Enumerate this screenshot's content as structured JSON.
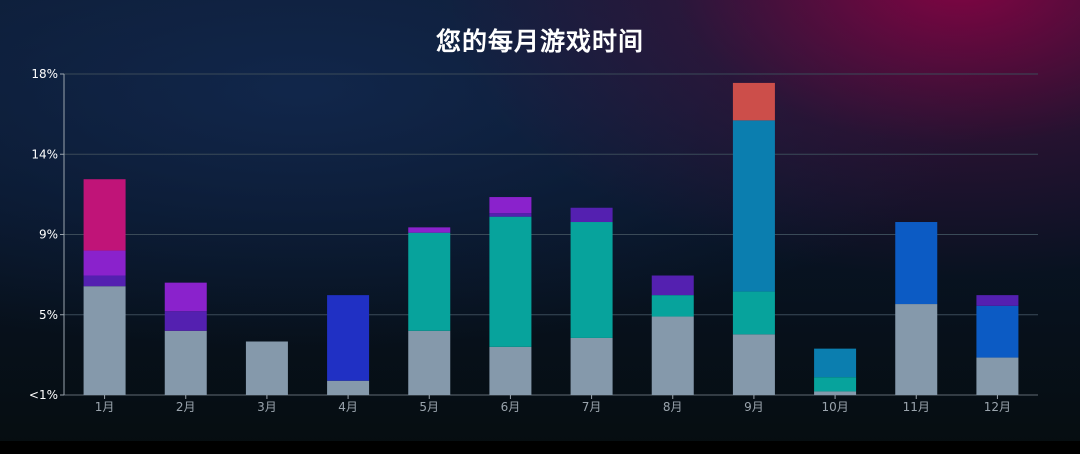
{
  "title": "您的每月游戏时间",
  "chart_data": {
    "type": "bar",
    "stacked": true,
    "title": "您的每月游戏时间",
    "xlabel": "",
    "ylabel": "",
    "categories": [
      "1月",
      "2月",
      "3月",
      "4月",
      "5月",
      "6月",
      "7月",
      "8月",
      "9月",
      "10月",
      "11月",
      "12月"
    ],
    "y_ticks": [
      {
        "label": "<1%",
        "value": 0
      },
      {
        "label": "5%",
        "value": 4.5
      },
      {
        "label": "9%",
        "value": 9
      },
      {
        "label": "14%",
        "value": 13.5
      },
      {
        "label": "18%",
        "value": 18
      }
    ],
    "ylim": [
      0,
      18
    ],
    "grid": true,
    "legend": "none",
    "series": [
      {
        "color": "#8599ab",
        "values": [
          6.1,
          3.6,
          3.0,
          0.8,
          3.6,
          2.7,
          3.2,
          4.4,
          3.4,
          0.2,
          5.1,
          2.1
        ]
      },
      {
        "color": "#07a39c",
        "values": [
          0,
          0,
          0,
          0,
          5.5,
          7.3,
          6.5,
          1.2,
          2.4,
          0.8,
          0,
          0
        ]
      },
      {
        "color": "#0b7eaf",
        "values": [
          0,
          0,
          0,
          0,
          0,
          0,
          0,
          0,
          9.6,
          1.6,
          0,
          0
        ]
      },
      {
        "color": "#0c5bc4",
        "values": [
          0,
          0,
          0,
          0,
          0,
          0,
          0,
          0,
          0,
          0,
          4.6,
          2.9
        ]
      },
      {
        "color": "#2030c4",
        "values": [
          0,
          0,
          0,
          4.8,
          0,
          0,
          0,
          0,
          0,
          0,
          0,
          0
        ]
      },
      {
        "color": "#5420b0",
        "values": [
          0.6,
          1.1,
          0,
          0,
          0,
          0.2,
          0.8,
          1.1,
          0,
          0,
          0,
          0.6
        ]
      },
      {
        "color": "#8a22cc",
        "values": [
          1.4,
          1.6,
          0,
          0,
          0.3,
          0.9,
          0,
          0,
          0,
          0,
          0,
          0
        ]
      },
      {
        "color": "#c01478",
        "values": [
          4.0,
          0,
          0,
          0,
          0,
          0,
          0,
          0,
          0,
          0,
          0,
          0
        ]
      },
      {
        "color": "#cc4e4a",
        "values": [
          0,
          0,
          0,
          0,
          0,
          0,
          0,
          0,
          2.1,
          0,
          0,
          0
        ]
      }
    ]
  }
}
